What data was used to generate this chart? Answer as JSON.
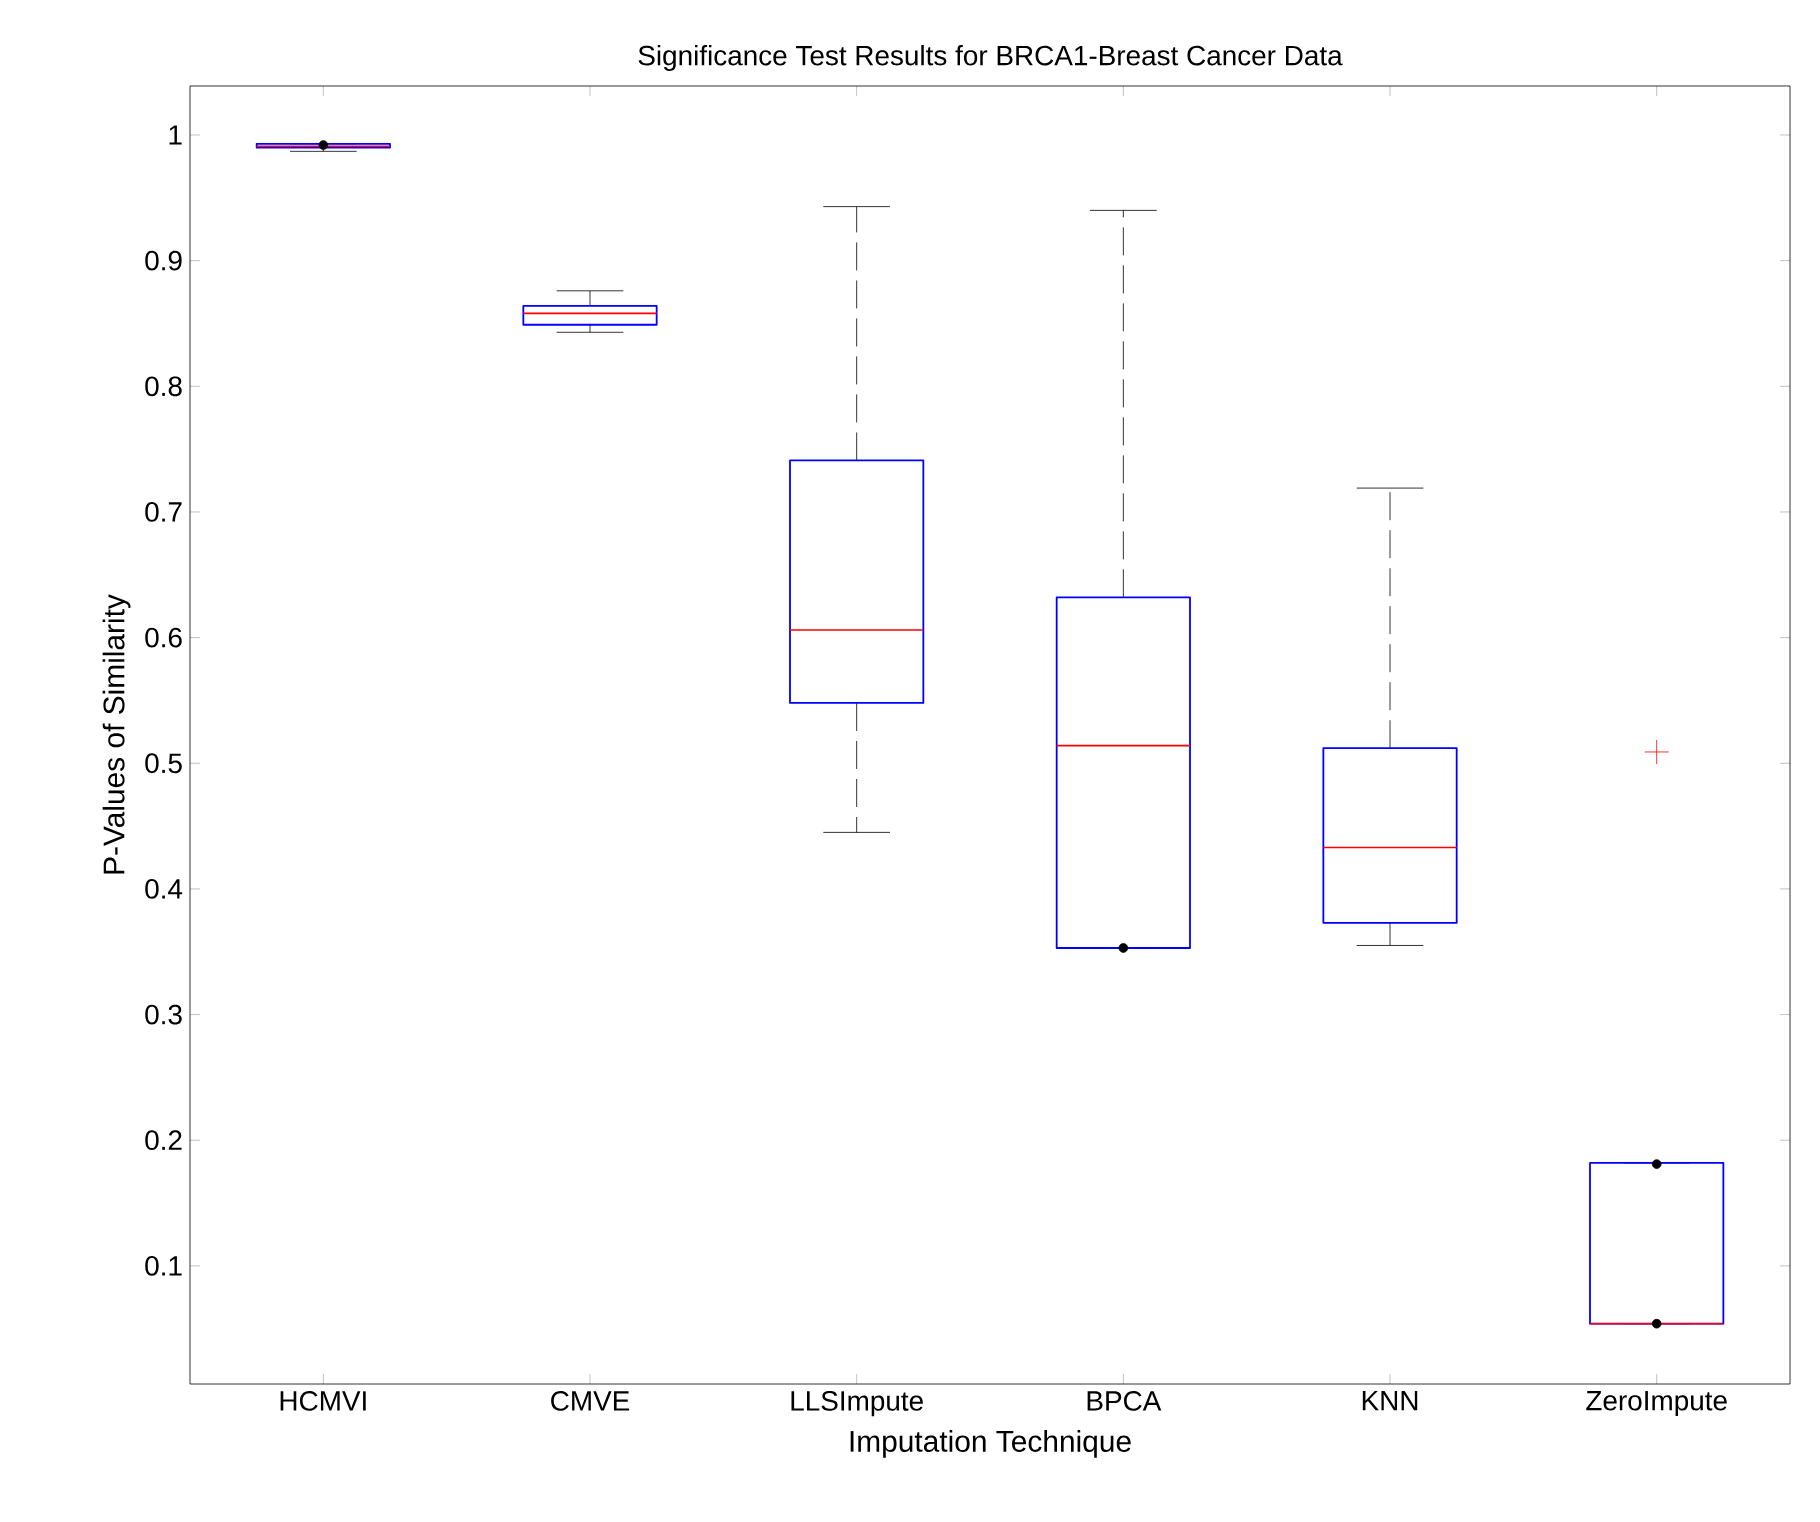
{
  "chart_data": {
    "type": "box",
    "title": "Significance Test Results for BRCA1-Breast Cancer Data",
    "xlabel": "Imputation Technique",
    "ylabel": "P-Values of Similarity",
    "categories": [
      "HCMVI",
      "CMVE",
      "LLSImpute",
      "BPCA",
      "KNN",
      "ZeroImpute"
    ],
    "color": "#0000ff",
    "boxes": [
      {
        "low": 0.987,
        "q1": 0.99,
        "median": 0.991,
        "q3": 0.993,
        "high": 0.993
      },
      {
        "low": 0.843,
        "q1": 0.849,
        "median": 0.858,
        "q3": 0.864,
        "high": 0.876
      },
      {
        "low": 0.445,
        "q1": 0.548,
        "median": 0.606,
        "q3": 0.741,
        "high": 0.943
      },
      {
        "low": 0.353,
        "q1": 0.353,
        "median": 0.514,
        "q3": 0.632,
        "high": 0.94
      },
      {
        "low": 0.355,
        "q1": 0.373,
        "median": 0.433,
        "q3": 0.512,
        "high": 0.719
      },
      {
        "low": 0.054,
        "q1": 0.054,
        "median": 0.054,
        "q3": 0.182,
        "high": 0.182,
        "outliers": [
          0.509
        ]
      }
    ],
    "series": [
      {
        "type": "scatter",
        "color": "#000000",
        "marker": "circle",
        "x": [
          "HCMVI",
          "BPCA",
          "ZeroImpute",
          "ZeroImpute"
        ],
        "values": [
          0.992,
          0.353,
          0.181,
          0.054
        ]
      }
    ],
    "ylim": [
      0.006,
      1.039
    ],
    "yticks": [
      0.1,
      0.2,
      0.3,
      0.4,
      0.5,
      0.6,
      0.7,
      0.8,
      0.9,
      1
    ],
    "grid": false
  }
}
